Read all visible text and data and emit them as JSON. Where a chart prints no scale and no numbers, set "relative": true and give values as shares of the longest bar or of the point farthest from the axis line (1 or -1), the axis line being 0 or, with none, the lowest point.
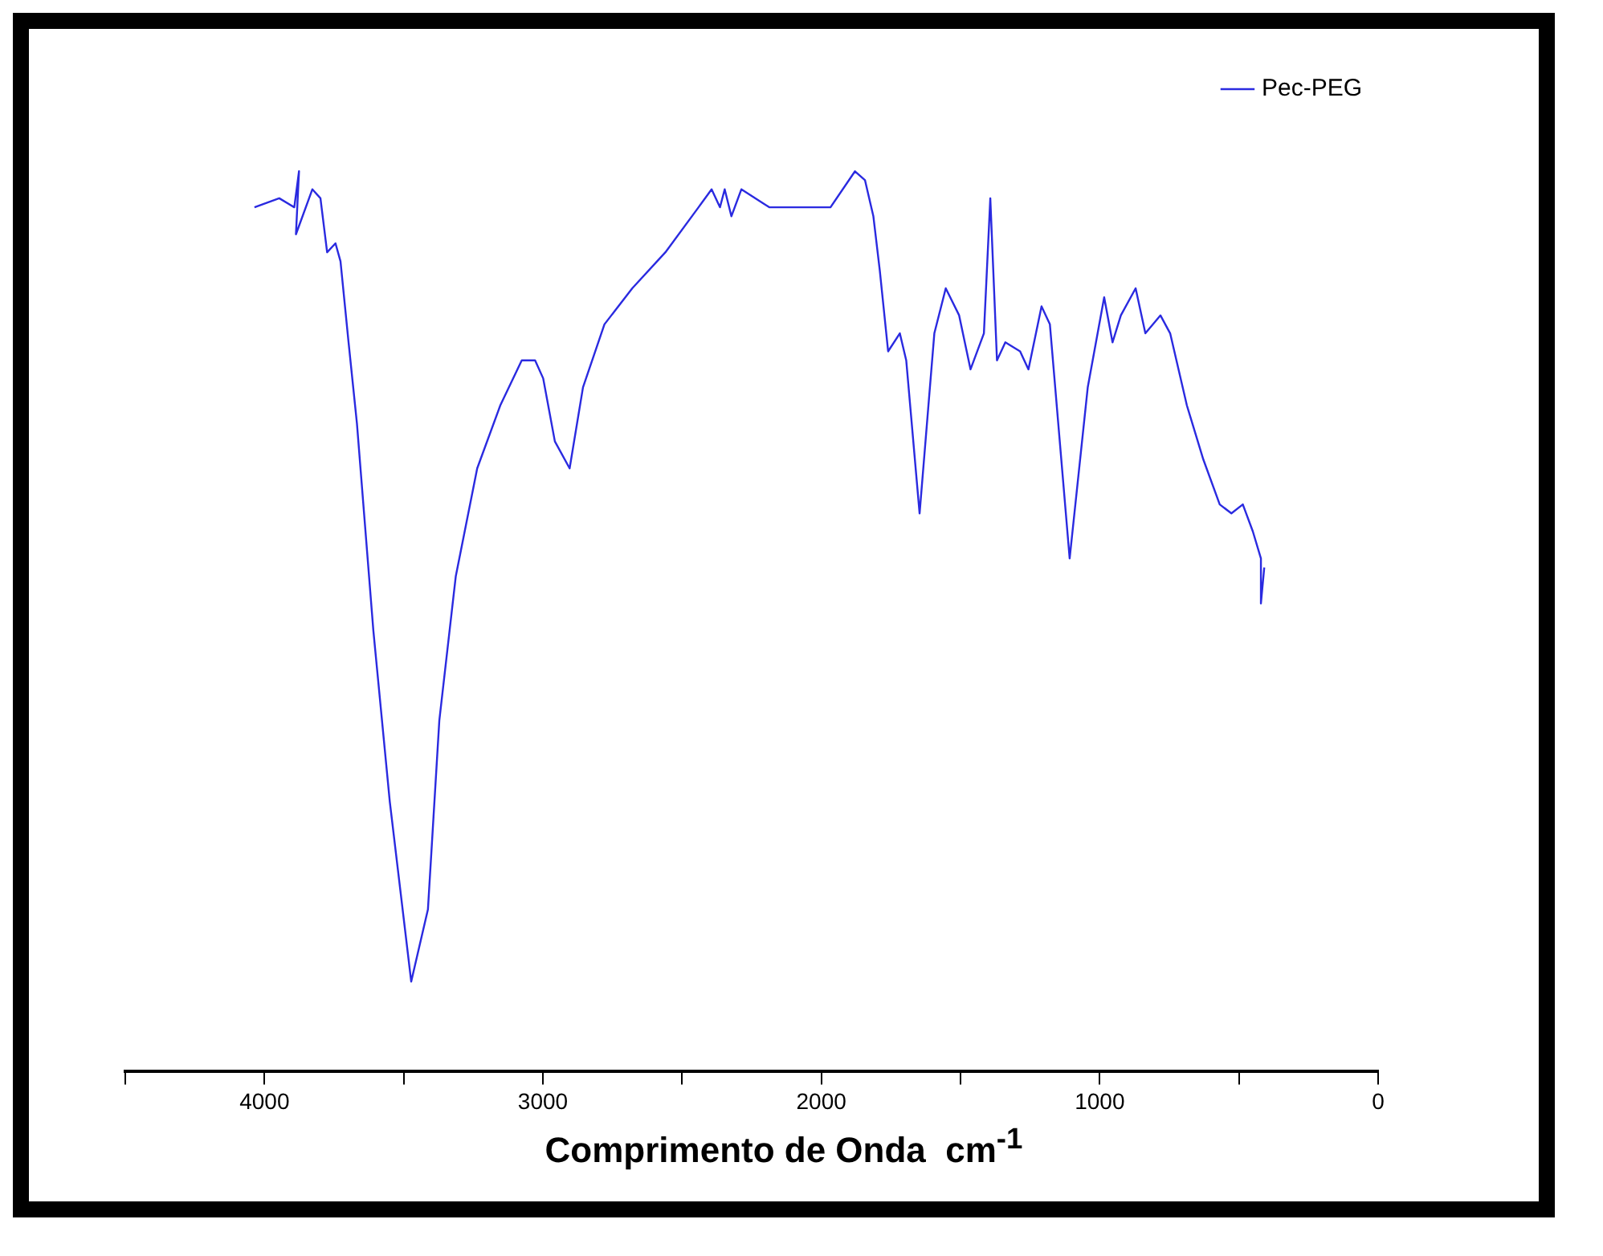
{
  "chart_data": {
    "type": "line",
    "relative": true,
    "xlabel": "Comprimento de Onda  cm$^{-1}$",
    "xlim": [
      4500,
      0
    ],
    "xticks": [
      {
        "value": 4500,
        "label": null
      },
      4000,
      {
        "value": 3500,
        "label": null
      },
      3000,
      {
        "value": 2500,
        "label": null
      },
      2000,
      {
        "value": 1500,
        "label": null
      },
      1000,
      {
        "value": 500,
        "label": null
      },
      0
    ],
    "legend": "top right",
    "grid": false,
    "series": [
      {
        "name": "Pec-PEG",
        "color": "#2a2ae0",
        "x": [
          4036,
          3947,
          3893,
          3876,
          3887,
          3828,
          3799,
          3775,
          3745,
          3727,
          3698,
          3668,
          3609,
          3550,
          3473,
          3413,
          3372,
          3313,
          3236,
          3153,
          3076,
          3028,
          2999,
          2957,
          2904,
          2856,
          2779,
          2679,
          2560,
          2441,
          2394,
          2364,
          2347,
          2323,
          2287,
          2187,
          1967,
          1879,
          1843,
          1813,
          1790,
          1760,
          1718,
          1695,
          1647,
          1594,
          1553,
          1505,
          1464,
          1416,
          1393,
          1369,
          1339,
          1286,
          1256,
          1209,
          1179,
          1108,
          1043,
          984,
          954,
          924,
          871,
          836,
          782,
          747,
          687,
          628,
          569,
          527,
          486,
          450,
          421,
          421,
          409
        ],
        "values": [
          0.96,
          0.97,
          0.96,
          1.0,
          0.93,
          0.98,
          0.97,
          0.91,
          0.92,
          0.9,
          0.81,
          0.72,
          0.49,
          0.3,
          0.1,
          0.18,
          0.39,
          0.55,
          0.67,
          0.74,
          0.79,
          0.79,
          0.77,
          0.7,
          0.67,
          0.76,
          0.83,
          0.87,
          0.91,
          0.96,
          0.98,
          0.96,
          0.98,
          0.95,
          0.98,
          0.96,
          0.96,
          1.0,
          0.99,
          0.95,
          0.89,
          0.8,
          0.82,
          0.79,
          0.62,
          0.82,
          0.87,
          0.84,
          0.78,
          0.82,
          0.97,
          0.79,
          0.81,
          0.8,
          0.78,
          0.85,
          0.83,
          0.57,
          0.76,
          0.86,
          0.81,
          0.84,
          0.87,
          0.82,
          0.84,
          0.82,
          0.74,
          0.68,
          0.63,
          0.62,
          0.63,
          0.6,
          0.57,
          0.52,
          0.56
        ]
      }
    ]
  }
}
